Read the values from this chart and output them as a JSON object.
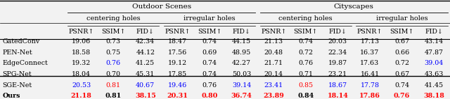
{
  "title_outdoor": "Outdoor Scenes",
  "title_cityscapes": "Cityscapes",
  "sub_centering": "centering holes",
  "sub_irregular": "irregular holes",
  "col_headers": [
    "PSNR↑",
    "SSIM↑",
    "FID↓",
    "PSNR↑",
    "SSIM↑",
    "FID↓",
    "PSNR↑",
    "SSIM↑",
    "FID↓",
    "PSNR↑",
    "SSIM↑",
    "FID↓"
  ],
  "row_labels": [
    "GatedConv",
    "PEN-Net",
    "EdgeConnect",
    "SPG-Net",
    "SGE-Net",
    "Ours"
  ],
  "row_bold": [
    false,
    false,
    false,
    false,
    false,
    true
  ],
  "data": [
    [
      "19.06",
      "0.73",
      "42.34",
      "18.47",
      "0.74",
      "44.15",
      "21.13",
      "0.74",
      "20.03",
      "17.13",
      "0.67",
      "43.14"
    ],
    [
      "18.58",
      "0.75",
      "44.12",
      "17.56",
      "0.69",
      "48.95",
      "20.48",
      "0.72",
      "22.34",
      "16.37",
      "0.66",
      "47.87"
    ],
    [
      "19.32",
      "0.76",
      "41.25",
      "19.12",
      "0.74",
      "42.27",
      "21.71",
      "0.76",
      "19.87",
      "17.63",
      "0.72",
      "39.04"
    ],
    [
      "18.04",
      "0.70",
      "45.31",
      "17.85",
      "0.74",
      "50.03",
      "20.14",
      "0.71",
      "23.21",
      "16.41",
      "0.67",
      "43.63"
    ],
    [
      "20.53",
      "0.81",
      "40.67",
      "19.46",
      "0.76",
      "39.14",
      "23.41",
      "0.85",
      "18.67",
      "17.78",
      "0.74",
      "41.45"
    ],
    [
      "21.18",
      "0.81",
      "38.15",
      "20.31",
      "0.80",
      "36.74",
      "23.89",
      "0.84",
      "18.14",
      "17.86",
      "0.76",
      "38.18"
    ]
  ],
  "colors": [
    [
      "#000000",
      "#000000",
      "#000000",
      "#000000",
      "#000000",
      "#000000",
      "#000000",
      "#000000",
      "#000000",
      "#000000",
      "#000000",
      "#000000"
    ],
    [
      "#000000",
      "#000000",
      "#000000",
      "#000000",
      "#000000",
      "#000000",
      "#000000",
      "#000000",
      "#000000",
      "#000000",
      "#000000",
      "#000000"
    ],
    [
      "#000000",
      "#0000ff",
      "#000000",
      "#000000",
      "#000000",
      "#000000",
      "#000000",
      "#000000",
      "#000000",
      "#000000",
      "#000000",
      "#0000ff"
    ],
    [
      "#000000",
      "#000000",
      "#000000",
      "#000000",
      "#000000",
      "#000000",
      "#000000",
      "#000000",
      "#000000",
      "#000000",
      "#000000",
      "#000000"
    ],
    [
      "#0000ff",
      "#ff0000",
      "#0000ff",
      "#0000ff",
      "#000000",
      "#0000ff",
      "#0000ff",
      "#ff0000",
      "#0000ff",
      "#0000ff",
      "#000000",
      "#000000"
    ],
    [
      "#ff0000",
      "#000000",
      "#ff0000",
      "#ff0000",
      "#ff0000",
      "#ff0000",
      "#ff0000",
      "#000000",
      "#ff0000",
      "#ff0000",
      "#ff0000",
      "#ff0000"
    ]
  ]
}
